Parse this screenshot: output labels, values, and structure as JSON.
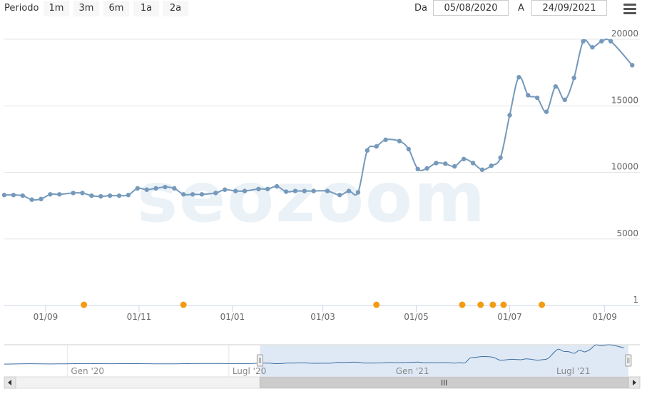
{
  "toolbar": {
    "period_label": "Periodo",
    "range_buttons": [
      "1m",
      "3m",
      "6m",
      "1a",
      "2a"
    ],
    "from_label": "Da",
    "from_value": "05/08/2020",
    "to_label": "A",
    "to_value": "24/09/2021",
    "menu_icon": "hamburger-menu-icon"
  },
  "watermark": "seozoom",
  "colors": {
    "line": "#7599bb",
    "marker": "#f39c12",
    "navigator_fill": "#dbe7f5"
  },
  "chart_data": {
    "type": "line",
    "ylim": [
      0,
      20000
    ],
    "y_ticks": [
      1,
      5000,
      10000,
      15000,
      20000
    ],
    "y_tick_labels": [
      "1",
      "5000",
      "10000",
      "15000",
      "20000"
    ],
    "x_tick_labels": [
      "01/09",
      "01/11",
      "01/01",
      "01/03",
      "01/05",
      "01/07",
      "01/09"
    ],
    "x_tick_dates": [
      "2020-09-01",
      "2020-11-01",
      "2021-01-01",
      "2021-03-01",
      "2021-05-01",
      "2021-07-01",
      "2021-09-01"
    ],
    "x_range": [
      "2020-08-05",
      "2021-09-24"
    ],
    "series": [
      {
        "values": [
          [
            "2020-08-05",
            8300
          ],
          [
            "2020-08-11",
            8300
          ],
          [
            "2020-08-17",
            8250
          ],
          [
            "2020-08-23",
            7950
          ],
          [
            "2020-08-29",
            8000
          ],
          [
            "2020-09-04",
            8350
          ],
          [
            "2020-09-10",
            8350
          ],
          [
            "2020-09-19",
            8450
          ],
          [
            "2020-09-25",
            8450
          ],
          [
            "2020-10-01",
            8250
          ],
          [
            "2020-10-07",
            8200
          ],
          [
            "2020-10-13",
            8250
          ],
          [
            "2020-10-19",
            8250
          ],
          [
            "2020-10-25",
            8300
          ],
          [
            "2020-10-31",
            8800
          ],
          [
            "2020-11-06",
            8700
          ],
          [
            "2020-11-12",
            8800
          ],
          [
            "2020-11-18",
            8900
          ],
          [
            "2020-11-24",
            8800
          ],
          [
            "2020-11-30",
            8350
          ],
          [
            "2020-12-06",
            8350
          ],
          [
            "2020-12-12",
            8350
          ],
          [
            "2020-12-21",
            8450
          ],
          [
            "2020-12-27",
            8700
          ],
          [
            "2021-01-03",
            8600
          ],
          [
            "2021-01-09",
            8600
          ],
          [
            "2021-01-18",
            8750
          ],
          [
            "2021-01-24",
            8750
          ],
          [
            "2021-01-30",
            8950
          ],
          [
            "2021-02-05",
            8550
          ],
          [
            "2021-02-11",
            8600
          ],
          [
            "2021-02-17",
            8600
          ],
          [
            "2021-02-23",
            8600
          ],
          [
            "2021-03-04",
            8600
          ],
          [
            "2021-03-12",
            8300
          ],
          [
            "2021-03-18",
            8600
          ],
          [
            "2021-03-24",
            8500
          ],
          [
            "2021-03-30",
            11650
          ],
          [
            "2021-04-05",
            11950
          ],
          [
            "2021-04-11",
            12450
          ],
          [
            "2021-04-20",
            12350
          ],
          [
            "2021-04-26",
            11750
          ],
          [
            "2021-05-02",
            10250
          ],
          [
            "2021-05-08",
            10300
          ],
          [
            "2021-05-14",
            10700
          ],
          [
            "2021-05-20",
            10650
          ],
          [
            "2021-05-26",
            10450
          ],
          [
            "2021-06-01",
            11000
          ],
          [
            "2021-06-07",
            10700
          ],
          [
            "2021-06-13",
            10200
          ],
          [
            "2021-06-19",
            10500
          ],
          [
            "2021-06-25",
            11100
          ],
          [
            "2021-07-01",
            14300
          ],
          [
            "2021-07-07",
            17150
          ],
          [
            "2021-07-13",
            15800
          ],
          [
            "2021-07-19",
            15600
          ],
          [
            "2021-07-25",
            14550
          ],
          [
            "2021-07-31",
            16450
          ],
          [
            "2021-08-06",
            15450
          ],
          [
            "2021-08-12",
            17100
          ],
          [
            "2021-08-18",
            19850
          ],
          [
            "2021-08-24",
            19400
          ],
          [
            "2021-08-30",
            19850
          ],
          [
            "2021-09-05",
            19850
          ],
          [
            "2021-09-19",
            18050
          ]
        ]
      }
    ],
    "markers": [
      "2020-09-26",
      "2020-11-30",
      "2021-04-05",
      "2021-05-31",
      "2021-06-12",
      "2021-06-20",
      "2021-06-27",
      "2021-07-22"
    ],
    "navigator": {
      "x_labels": [
        "Gen '20",
        "Lugl '20",
        "Gen '21",
        "Lugl '21"
      ],
      "x_dates": [
        "2020-01-01",
        "2020-07-01",
        "2021-01-01",
        "2021-07-01"
      ],
      "x_range": [
        "2019-10-22",
        "2021-10-07"
      ],
      "selection": [
        "2020-08-05",
        "2021-09-24"
      ],
      "early_values": [
        [
          "2019-10-22",
          7700
        ],
        [
          "2019-11-20",
          7900
        ],
        [
          "2019-12-20",
          7800
        ],
        [
          "2020-01-20",
          8000
        ],
        [
          "2020-02-20",
          7900
        ],
        [
          "2020-03-20",
          7950
        ],
        [
          "2020-04-20",
          7800
        ],
        [
          "2020-05-20",
          8000
        ],
        [
          "2020-06-20",
          8100
        ],
        [
          "2020-07-20",
          8000
        ]
      ]
    }
  }
}
